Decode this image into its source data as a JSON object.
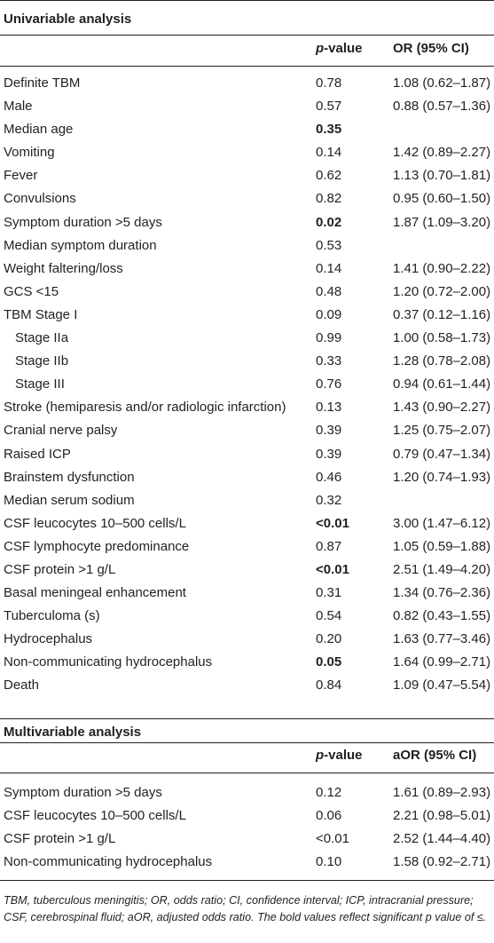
{
  "univariable": {
    "title": "Univariable analysis",
    "col_p_prefix": "p",
    "col_p_suffix": "-value",
    "col_or": "OR (95% CI)",
    "rows": [
      {
        "variable": "Definite TBM",
        "p": "0.78",
        "or": "1.08 (0.62–1.87)",
        "bold": false,
        "indent": false
      },
      {
        "variable": "Male",
        "p": "0.57",
        "or": "0.88 (0.57–1.36)",
        "bold": false,
        "indent": false
      },
      {
        "variable": "Median age",
        "p": "0.35",
        "or": "",
        "bold": true,
        "indent": false
      },
      {
        "variable": "Vomiting",
        "p": "0.14",
        "or": "1.42 (0.89–2.27)",
        "bold": false,
        "indent": false
      },
      {
        "variable": "Fever",
        "p": "0.62",
        "or": "1.13 (0.70–1.81)",
        "bold": false,
        "indent": false
      },
      {
        "variable": "Convulsions",
        "p": "0.82",
        "or": "0.95 (0.60–1.50)",
        "bold": false,
        "indent": false
      },
      {
        "variable": "Symptom duration >5 days",
        "p": "0.02",
        "or": "1.87 (1.09–3.20)",
        "bold": true,
        "indent": false
      },
      {
        "variable": "Median symptom duration",
        "p": "0.53",
        "or": "",
        "bold": false,
        "indent": false
      },
      {
        "variable": "Weight faltering/loss",
        "p": "0.14",
        "or": "1.41 (0.90–2.22)",
        "bold": false,
        "indent": false
      },
      {
        "variable": "GCS <15",
        "p": "0.48",
        "or": "1.20 (0.72–2.00)",
        "bold": false,
        "indent": false
      },
      {
        "variable": "TBM Stage I",
        "p": "0.09",
        "or": "0.37 (0.12–1.16)",
        "bold": false,
        "indent": false
      },
      {
        "variable": "Stage IIa",
        "p": "0.99",
        "or": "1.00 (0.58–1.73)",
        "bold": false,
        "indent": true
      },
      {
        "variable": "Stage IIb",
        "p": "0.33",
        "or": "1.28 (0.78–2.08)",
        "bold": false,
        "indent": true
      },
      {
        "variable": "Stage III",
        "p": "0.76",
        "or": "0.94 (0.61–1.44)",
        "bold": false,
        "indent": true
      },
      {
        "variable": "Stroke (hemiparesis and/or radiologic infarction)",
        "p": "0.13",
        "or": "1.43 (0.90–2.27)",
        "bold": false,
        "indent": false
      },
      {
        "variable": "Cranial nerve palsy",
        "p": "0.39",
        "or": "1.25 (0.75–2.07)",
        "bold": false,
        "indent": false
      },
      {
        "variable": "Raised ICP",
        "p": "0.39",
        "or": "0.79 (0.47–1.34)",
        "bold": false,
        "indent": false
      },
      {
        "variable": "Brainstem dysfunction",
        "p": "0.46",
        "or": "1.20 (0.74–1.93)",
        "bold": false,
        "indent": false
      },
      {
        "variable": "Median serum sodium",
        "p": "0.32",
        "or": "",
        "bold": false,
        "indent": false
      },
      {
        "variable": "CSF leucocytes 10–500 cells/L",
        "p": "<0.01",
        "or": "3.00 (1.47–6.12)",
        "bold": true,
        "indent": false
      },
      {
        "variable": "CSF lymphocyte predominance",
        "p": "0.87",
        "or": "1.05 (0.59–1.88)",
        "bold": false,
        "indent": false
      },
      {
        "variable": "CSF protein >1 g/L",
        "p": "<0.01",
        "or": "2.51 (1.49–4.20)",
        "bold": true,
        "indent": false
      },
      {
        "variable": "Basal meningeal enhancement",
        "p": "0.31",
        "or": "1.34 (0.76–2.36)",
        "bold": false,
        "indent": false
      },
      {
        "variable": "Tuberculoma (s)",
        "p": "0.54",
        "or": "0.82 (0.43–1.55)",
        "bold": false,
        "indent": false
      },
      {
        "variable": "Hydrocephalus",
        "p": "0.20",
        "or": "1.63 (0.77–3.46)",
        "bold": false,
        "indent": false
      },
      {
        "variable": "Non-communicating hydrocephalus",
        "p": "0.05",
        "or": "1.64 (0.99–2.71)",
        "bold": true,
        "indent": false
      },
      {
        "variable": "Death",
        "p": "0.84",
        "or": "1.09 (0.47–5.54)",
        "bold": false,
        "indent": false
      }
    ]
  },
  "multivariable": {
    "title": "Multivariable analysis",
    "col_p_prefix": "p",
    "col_p_suffix": "-value",
    "col_or": "aOR (95% CI)",
    "rows": [
      {
        "variable": "Symptom duration >5 days",
        "p": "0.12",
        "or": "1.61 (0.89–2.93)",
        "bold": false,
        "indent": false
      },
      {
        "variable": "CSF leucocytes 10–500 cells/L",
        "p": "0.06",
        "or": "2.21 (0.98–5.01)",
        "bold": false,
        "indent": false
      },
      {
        "variable": "CSF protein >1 g/L",
        "p": "<0.01",
        "or": "2.52 (1.44–4.40)",
        "bold": false,
        "indent": false
      },
      {
        "variable": "Non-communicating hydrocephalus",
        "p": "0.10",
        "or": "1.58 (0.92–2.71)",
        "bold": false,
        "indent": false
      }
    ]
  },
  "footnote": "TBM, tuberculous meningitis; OR, odds ratio; CI, confidence interval; ICP, intracranial pressure; CSF, cerebrospinal fluid; aOR, adjusted odds ratio. The bold values reflect significant p value of ≤."
}
